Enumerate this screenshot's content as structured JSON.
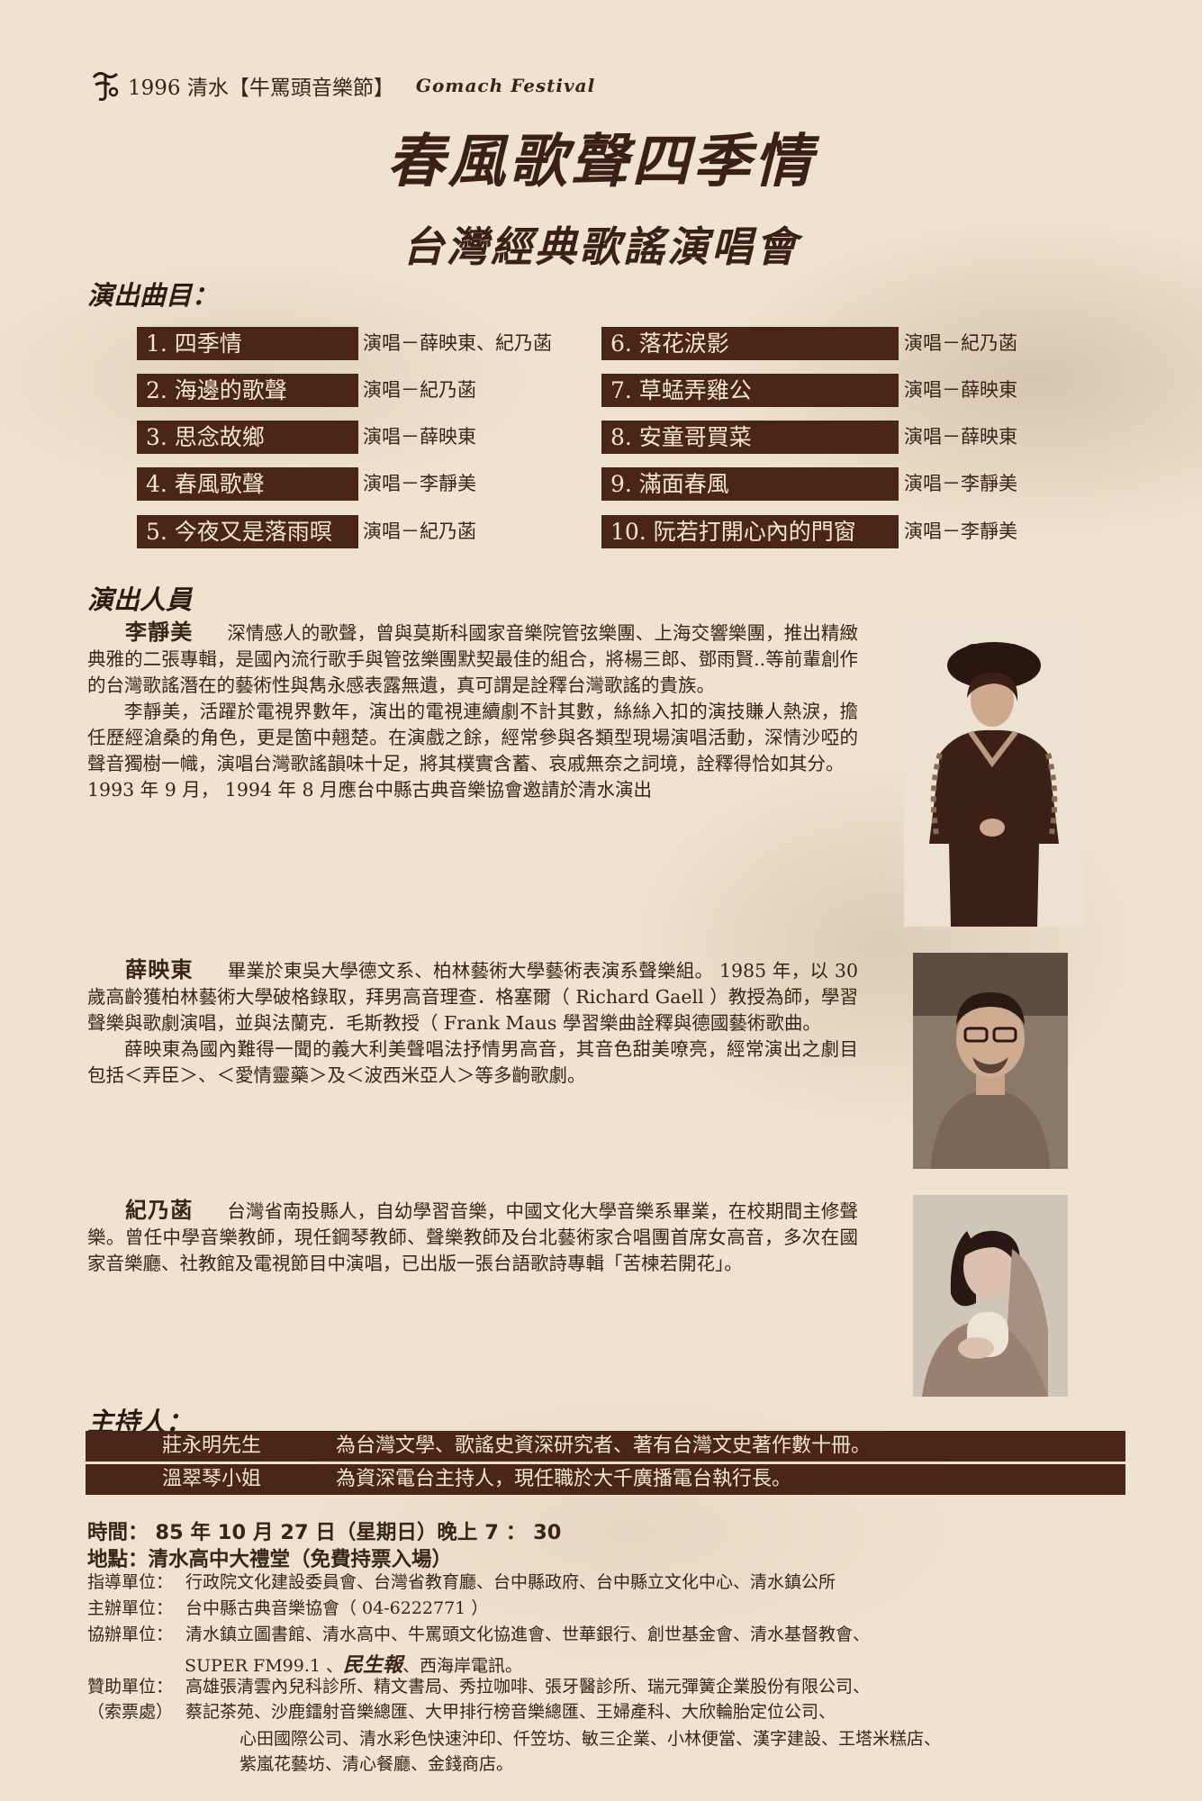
{
  "header": {
    "festival_line": "1996 清水【牛罵頭音樂節】",
    "festival_en": "Gomach Festival"
  },
  "title": {
    "main": "春風歌聲四季情",
    "sub": "台灣經典歌謠演唱會"
  },
  "program": {
    "heading": "演出曲目：",
    "songs": [
      {
        "title": "1. 四季情",
        "singer": "演唱－薛映東、紀乃菡"
      },
      {
        "title": "2. 海邊的歌聲",
        "singer": "演唱－紀乃菡"
      },
      {
        "title": "3. 思念故鄉",
        "singer": "演唱－薛映東"
      },
      {
        "title": "4. 春風歌聲",
        "singer": "演唱－李靜美"
      },
      {
        "title": "5. 今夜又是落雨暝",
        "singer": "演唱－紀乃菡"
      },
      {
        "title": "6. 落花涙影",
        "singer": "演唱－紀乃菡"
      },
      {
        "title": "7. 草蜢弄雞公",
        "singer": "演唱－薛映東"
      },
      {
        "title": "8. 安童哥買菜",
        "singer": "演唱－薛映東"
      },
      {
        "title": "9. 滿面春風",
        "singer": "演唱－李靜美"
      },
      {
        "title": "10. 阮若打開心內的門窗",
        "singer": "演唱－李靜美"
      }
    ]
  },
  "performers": {
    "heading": "演出人員",
    "p1": {
      "name": "李靜美",
      "para1": "深情感人的歌聲，曾與莫斯科國家音樂院管弦樂團、上海交響樂團，推出精緻典雅的二張專輯，是國內流行歌手與管弦樂團默契最佳的組合，將楊三郎、鄧雨賢..等前輩創作的台灣歌謠潛在的藝術性與雋永感表露無遺，真可謂是詮釋台灣歌謠的貴族。",
      "para2": "李靜美，活躍於電視界數年，演出的電視連續劇不計其數，絲絲入扣的演技賺人熱淚，擔任歷經滄桑的角色，更是箇中翹楚。在演戲之餘，經常參與各類型現場演唱活動，深情沙啞的聲音獨樹一幟，演唱台灣歌謠韻味十足，將其樸實含蓄、哀戚無奈之詞境，詮釋得恰如其分。",
      "para3": "1993 年 9 月， 1994 年 8 月應台中縣古典音樂協會邀請於清水演出"
    },
    "p2": {
      "name": "薛映東",
      "para1": "畢業於東吳大學德文系、柏林藝術大學藝術表演系聲樂組。 1985 年，以 30 歲高齡獲柏林藝術大學破格錄取，拜男高音理查．格塞爾（ Richard Gaell ）教授為師，學習聲樂與歌劇演唱，並與法蘭克．毛斯教授（ Frank Maus 學習樂曲詮釋與德國藝術歌曲。",
      "para2": "薛映東為國內難得一聞的義大利美聲唱法抒情男高音，其音色甜美嘹亮，經常演出之劇目包括＜弄臣＞、＜愛情靈藥＞及＜波西米亞人＞等多齣歌劇。"
    },
    "p3": {
      "name": "紀乃菡",
      "para1": "台灣省南投縣人，自幼學習音樂，中國文化大學音樂系畢業，在校期間主修聲樂。曾任中學音樂教師，現任鋼琴教師、聲樂教師及台北藝術家合唱團首席女高音，多次在國家音樂廳、社教館及電視節目中演唱，已出版一張台語歌詩專輯「苦楝若開花」。"
    }
  },
  "hosts": {
    "heading": "主持人：",
    "items": [
      {
        "name": "莊永明先生",
        "desc": "為台灣文學、歌謠史資深研究者、著有台灣文史著作數十冊。"
      },
      {
        "name": "溫翠琴小姐",
        "desc": "為資深電台主持人，現任職於大千廣播電台執行長。"
      }
    ]
  },
  "info": {
    "time": "時間： 85 年 10 月 27 日（星期日）晚上 7 ： 30",
    "place": "地點：清水高中大禮堂（免費持票入場）",
    "guide_label": "指導單位：",
    "guide": "行政院文化建設委員會、台灣省教育廳、台中縣政府、台中縣立文化中心、清水鎮公所",
    "host_label": "主辦單位：",
    "host": "台中縣古典音樂協會（ 04-6222771 ）",
    "co_label": "協辦單位：",
    "co_1": "清水鎮立圖書館、清水高中、牛罵頭文化協進會、世華銀行、創世基金會、清水基督教會、",
    "co_2a": "SUPER FM99.1 、",
    "co_2b": "民生報",
    "co_2c": "、西海岸電訊。",
    "sponsor_label": "贊助單位：",
    "sponsor_1": "高雄張清雲內兒科診所、精文書局、秀拉咖啡、張牙醫診所、瑞元彈簧企業股份有限公司、",
    "ticket_label": "（索票處）",
    "sponsor_2": "蔡記茶苑、沙鹿鐳射音樂總匯、大甲排行榜音樂總匯、王婦產科、大欣輪胎定位公司、",
    "sponsor_3": "心田國際公司、清水彩色快速沖印、仟笠坊、敏三企業、小林便當、漢字建設、王塔米糕店、",
    "sponsor_4": "紫嵐花藝坊、清心餐廳、金錢商店。"
  }
}
